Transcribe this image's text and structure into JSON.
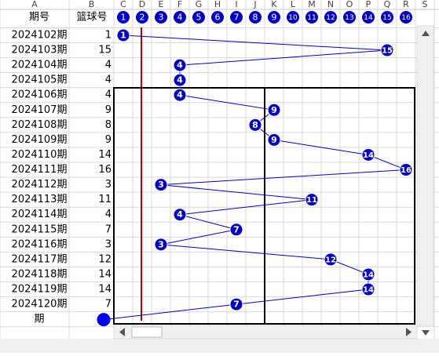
{
  "column_letters": [
    "A",
    "B",
    "C",
    "D",
    "E",
    "F",
    "G",
    "H",
    "I",
    "J",
    "K",
    "L",
    "M",
    "N",
    "O",
    "P",
    "Q",
    "R",
    "S"
  ],
  "header": {
    "period_label": "期号",
    "value_label": "篮球号",
    "numbers": [
      1,
      2,
      3,
      4,
      5,
      6,
      7,
      8,
      9,
      10,
      11,
      12,
      13,
      14,
      15,
      16
    ]
  },
  "rows": [
    {
      "period": "2024102期",
      "value": 1
    },
    {
      "period": "2024103期",
      "value": 15
    },
    {
      "period": "2024104期",
      "value": 4
    },
    {
      "period": "2024105期",
      "value": 4
    },
    {
      "period": "2024106期",
      "value": 4
    },
    {
      "period": "2024107期",
      "value": 9
    },
    {
      "period": "2024108期",
      "value": 8
    },
    {
      "period": "2024109期",
      "value": 9
    },
    {
      "period": "2024110期",
      "value": 14
    },
    {
      "period": "2024111期",
      "value": 16
    },
    {
      "period": "2024112期",
      "value": 3
    },
    {
      "period": "2024113期",
      "value": 11
    },
    {
      "period": "2024114期",
      "value": 4
    },
    {
      "period": "2024115期",
      "value": 7
    },
    {
      "period": "2024116期",
      "value": 3
    },
    {
      "period": "2024117期",
      "value": 12
    },
    {
      "period": "2024118期",
      "value": 14
    },
    {
      "period": "2024119期",
      "value": 14
    },
    {
      "period": "2024120期",
      "value": 7
    }
  ],
  "footer_label": "期"
}
